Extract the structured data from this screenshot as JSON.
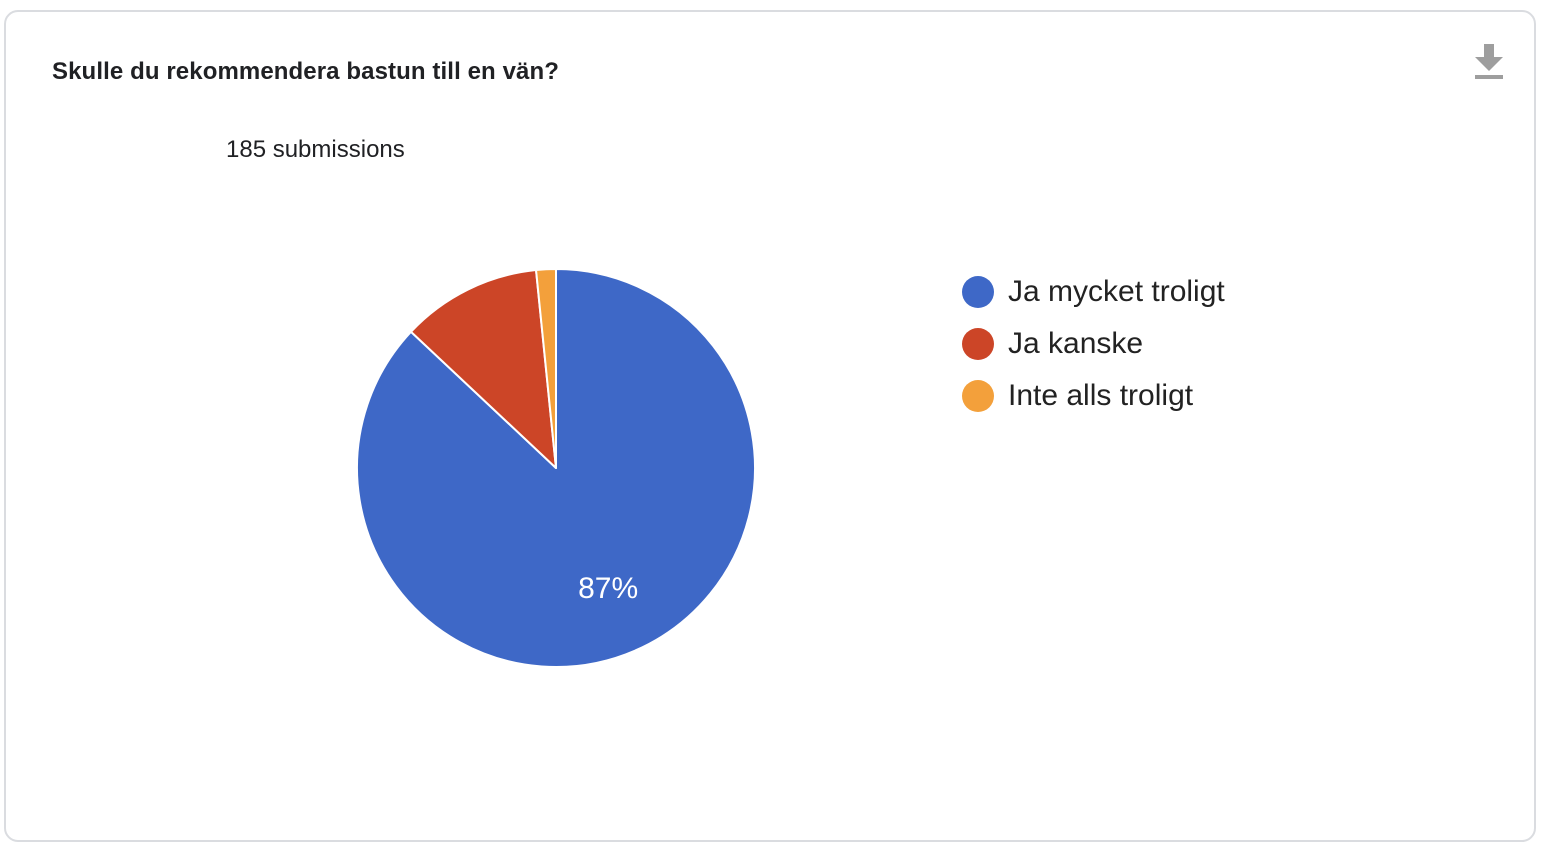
{
  "card": {
    "title": "Skulle du rekommendera bastun till en vän?",
    "subtitle": "185 submissions"
  },
  "download_icon": "download-icon",
  "chart_data": {
    "type": "pie",
    "total": 185,
    "slices": [
      {
        "label": "Ja mycket troligt",
        "value": 87.0,
        "color": "#3e68c7",
        "data_label": "87%"
      },
      {
        "label": "Ja kanske",
        "value": 11.4,
        "color": "#cc4527",
        "data_label": ""
      },
      {
        "label": "Inte alls troligt",
        "value": 1.6,
        "color": "#f3a03b",
        "data_label": ""
      }
    ],
    "legend_position": "right",
    "start_angle_deg": 0,
    "direction": "clockwise"
  }
}
